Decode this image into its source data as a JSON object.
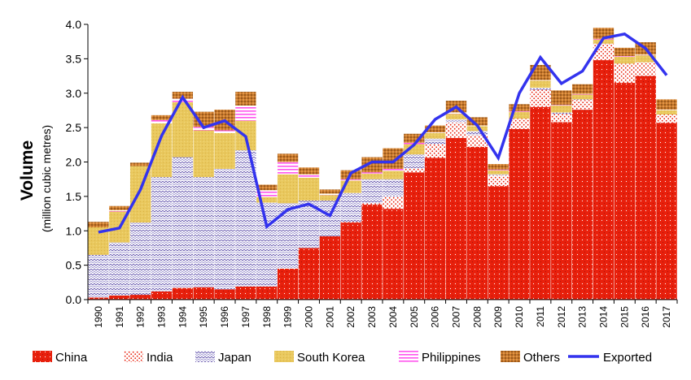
{
  "chart_data": {
    "type": "bar",
    "stacked": true,
    "ylabel": "Volume",
    "ylabel_sub": "(million cubic metres)",
    "ylim": [
      0,
      4
    ],
    "yticks": [
      "0.0",
      "0.5",
      "1.0",
      "1.5",
      "2.0",
      "2.5",
      "3.0",
      "3.5",
      "4.0"
    ],
    "grid": false,
    "legend_position": "bottom",
    "categories": [
      "1990",
      "1991",
      "1992",
      "1993",
      "1994",
      "1995",
      "1996",
      "1997",
      "1998",
      "1999",
      "2000",
      "2001",
      "2002",
      "2003",
      "2004",
      "2005",
      "2006",
      "2007",
      "2008",
      "2009",
      "2010",
      "2011",
      "2012",
      "2013",
      "2014",
      "2015",
      "2016",
      "2017"
    ],
    "series": [
      {
        "name": "China",
        "color": "#e8200c",
        "values": [
          0.03,
          0.06,
          0.07,
          0.12,
          0.17,
          0.18,
          0.15,
          0.19,
          0.19,
          0.45,
          0.75,
          0.92,
          1.12,
          1.38,
          1.32,
          1.85,
          2.06,
          2.35,
          2.22,
          1.65,
          2.48,
          2.8,
          2.58,
          2.76,
          3.48,
          3.15,
          3.25,
          2.57
        ]
      },
      {
        "name": "India",
        "color": "#e8200c",
        "values": [
          0,
          0,
          0,
          0,
          0,
          0,
          0,
          0,
          0,
          0,
          0,
          0,
          0.01,
          0.02,
          0.18,
          0.06,
          0.2,
          0.22,
          0.17,
          0.15,
          0.15,
          0.25,
          0.12,
          0.14,
          0.24,
          0.28,
          0.2,
          0.12
        ]
      },
      {
        "name": "Japan",
        "color": "#6a5acd",
        "values": [
          0.62,
          0.77,
          1.05,
          1.66,
          1.9,
          1.6,
          1.75,
          1.98,
          1.22,
          0.95,
          0.69,
          0.52,
          0.42,
          0.35,
          0.25,
          0.2,
          0.08,
          0.05,
          0.06,
          0.02,
          0,
          0.03,
          0.02,
          0.01,
          0,
          0,
          0,
          0
        ]
      },
      {
        "name": "South Korea",
        "color": "#e6c55a",
        "values": [
          0.4,
          0.45,
          0.82,
          0.78,
          0.8,
          0.68,
          0.52,
          0.43,
          0.08,
          0.42,
          0.33,
          0.08,
          0.18,
          0.08,
          0.12,
          0.15,
          0.08,
          0.08,
          0.07,
          0.06,
          0.1,
          0.1,
          0.1,
          0.07,
          0.06,
          0.1,
          0.1,
          0.06
        ]
      },
      {
        "name": "Philippines",
        "color": "#ff55ee",
        "values": [
          0,
          0.02,
          0,
          0.05,
          0.05,
          0.05,
          0.04,
          0.22,
          0.1,
          0.18,
          0.05,
          0.02,
          0.02,
          0.02,
          0.03,
          0.02,
          0.01,
          0.02,
          0.01,
          0.01,
          0.01,
          0.01,
          0.01,
          0.01,
          0.01,
          0.01,
          0.01,
          0.01
        ]
      },
      {
        "name": "Others",
        "color": "#c8782a",
        "values": [
          0.08,
          0.06,
          0.05,
          0.07,
          0.1,
          0.22,
          0.3,
          0.2,
          0.08,
          0.12,
          0.1,
          0.06,
          0.13,
          0.22,
          0.3,
          0.13,
          0.1,
          0.17,
          0.12,
          0.08,
          0.1,
          0.22,
          0.21,
          0.14,
          0.16,
          0.12,
          0.18,
          0.15
        ]
      }
    ],
    "line_series": {
      "name": "Exported",
      "color": "#3333ee",
      "values": [
        0.98,
        1.04,
        1.6,
        2.38,
        2.94,
        2.5,
        2.6,
        2.37,
        1.06,
        1.31,
        1.39,
        1.22,
        1.84,
        2.0,
        2.0,
        2.25,
        2.62,
        2.8,
        2.53,
        2.06,
        3.0,
        3.52,
        3.14,
        3.32,
        3.8,
        3.86,
        3.65,
        3.26
      ]
    }
  }
}
